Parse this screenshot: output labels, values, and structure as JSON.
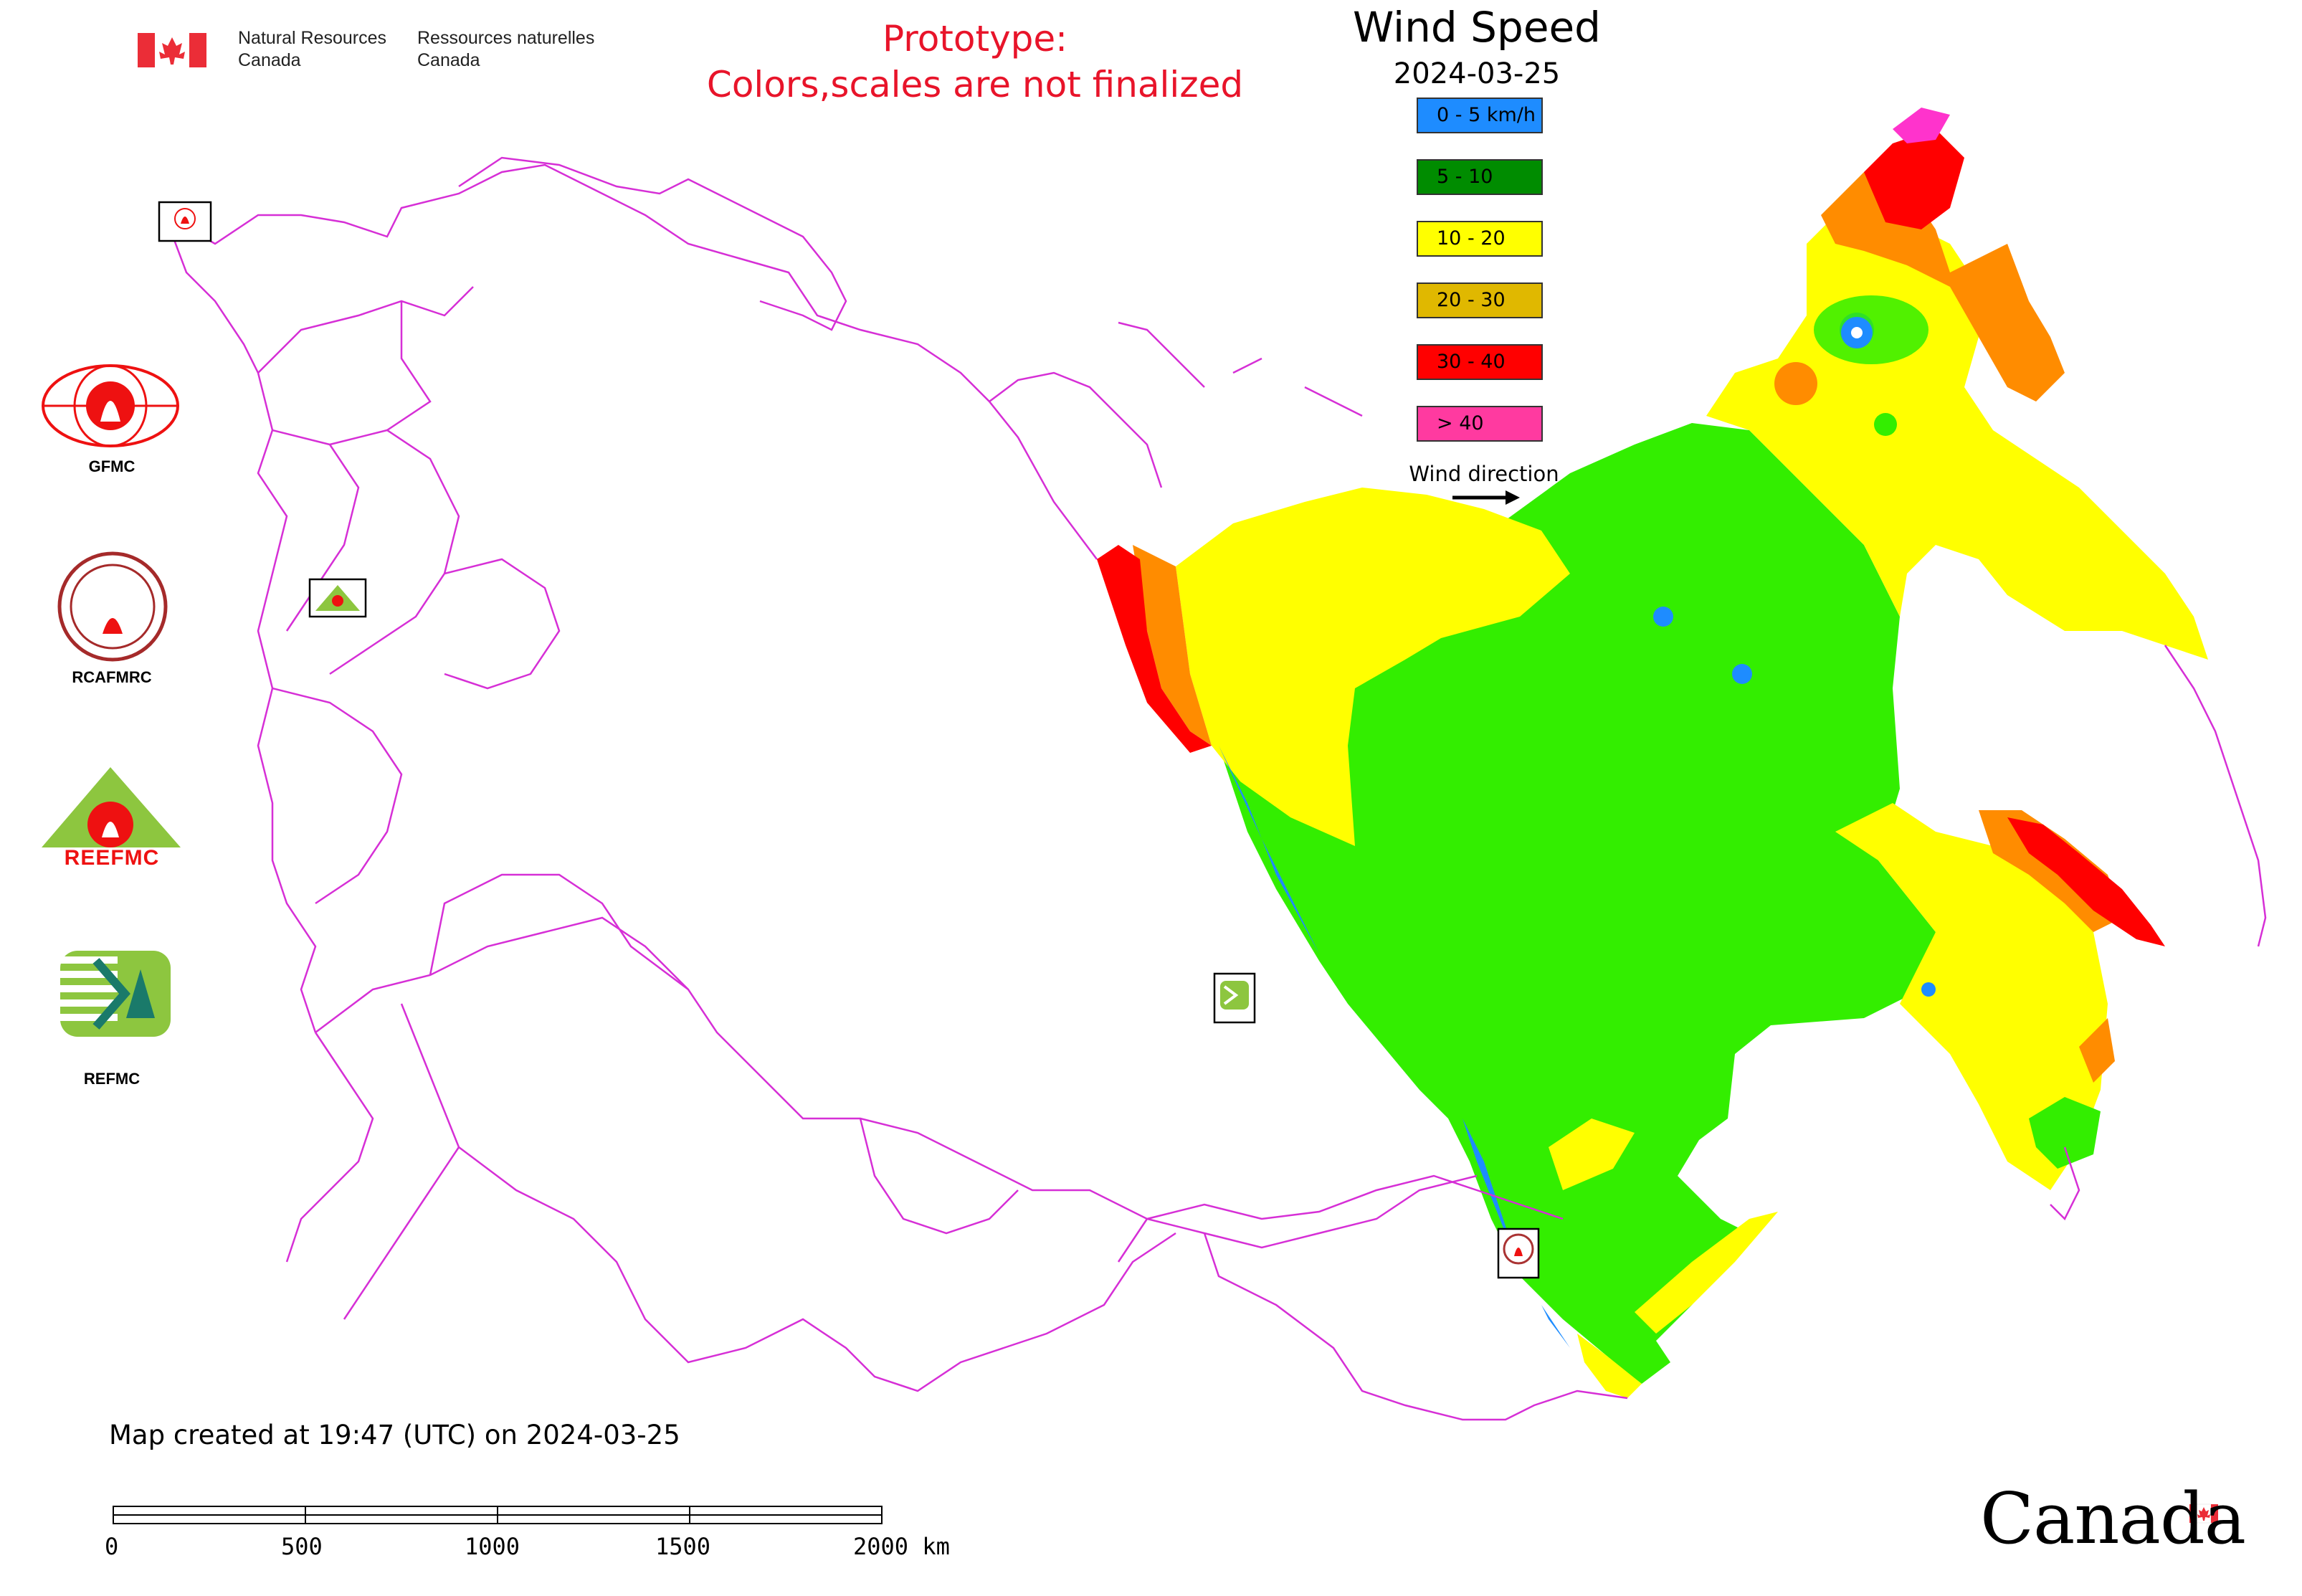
{
  "header": {
    "agency_en_line1": "Natural Resources",
    "agency_en_line2": "Canada",
    "agency_fr_line1": "Ressources naturelles",
    "agency_fr_line2": "Canada"
  },
  "prototype_notice": {
    "line1": "Prototype:",
    "line2": "Colors,scales are not finalized",
    "color": "#e8142a"
  },
  "map_title": {
    "title": "Wind Speed",
    "date": "2024-03-25"
  },
  "legend": {
    "items": [
      {
        "label": "0 - 5 km/h",
        "color": "#1e8cff"
      },
      {
        "label": "5 - 10",
        "color": "#008c00"
      },
      {
        "label": "10 - 20",
        "color": "#ffff00"
      },
      {
        "label": "20 - 30",
        "color": "#e0b800"
      },
      {
        "label": "30 - 40",
        "color": "#ff0000"
      },
      {
        "label": "> 40",
        "color": "#ff3aa0"
      }
    ],
    "wind_direction_label": "Wind direction",
    "arrow_icon": "right-arrow-icon"
  },
  "map_colors": {
    "boundary": "#d62fd6",
    "zone_0_5": "#1e8cff",
    "zone_5_10": "#33ee00",
    "zone_10_20": "#ffff00",
    "zone_20_30": "#ff8c00",
    "zone_30_40": "#ff0000",
    "zone_over_40": "#ff33cc"
  },
  "centers": [
    {
      "label": "GFMC",
      "icon": "gfmc-logo-icon"
    },
    {
      "label": "RCAFMRC",
      "icon": "rcafmrc-logo-icon"
    },
    {
      "label": "REEFMC",
      "icon": "reefmc-logo-icon"
    },
    {
      "label": "REFMC",
      "icon": "refmc-logo-icon"
    }
  ],
  "footer": {
    "created_text": "Map created at 19:47 (UTC) on 2024-03-25",
    "scale_labels": [
      "0",
      "500",
      "1000",
      "1500",
      "2000 km"
    ],
    "wordmark": "Canada"
  }
}
